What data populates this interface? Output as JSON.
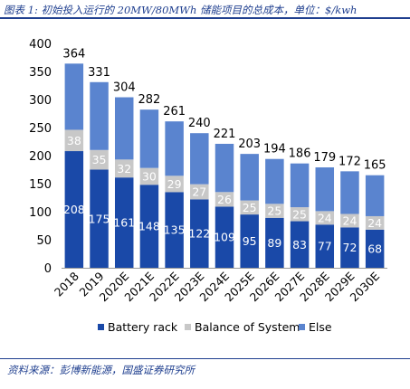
{
  "header": {
    "title": "图表 1: 初始投入运行的 20MW/80MWh 储能项目的总成本，单位：$/kwh"
  },
  "footer": {
    "source": "资料来源：彭博新能源，国盛证券研究所"
  },
  "chart_data": {
    "type": "bar",
    "stacked": true,
    "categories": [
      "2018",
      "2019",
      "2020E",
      "2021E",
      "2022E",
      "2023E",
      "2024E",
      "2025E",
      "2026E",
      "2027E",
      "2028E",
      "2029E",
      "2030E"
    ],
    "series": [
      {
        "name": "Battery rack",
        "color": "#1a49a8",
        "values": [
          208,
          175,
          161,
          148,
          135,
          122,
          109,
          95,
          89,
          83,
          77,
          72,
          68
        ]
      },
      {
        "name": "Balance of System",
        "color": "#c8c8c8",
        "values": [
          38,
          35,
          32,
          30,
          29,
          27,
          26,
          25,
          25,
          25,
          24,
          24,
          24
        ]
      },
      {
        "name": "Else",
        "color": "#5a84cf",
        "values": [
          118,
          121,
          111,
          104,
          97,
          91,
          86,
          83,
          80,
          78,
          78,
          76,
          73
        ]
      }
    ],
    "totals": [
      364,
      331,
      304,
      282,
      261,
      240,
      221,
      203,
      194,
      186,
      179,
      172,
      165
    ],
    "ylim": [
      0,
      400
    ],
    "yticks": [
      0,
      50,
      100,
      150,
      200,
      250,
      300,
      350,
      400
    ],
    "grid": false,
    "legend_position": "bottom"
  }
}
